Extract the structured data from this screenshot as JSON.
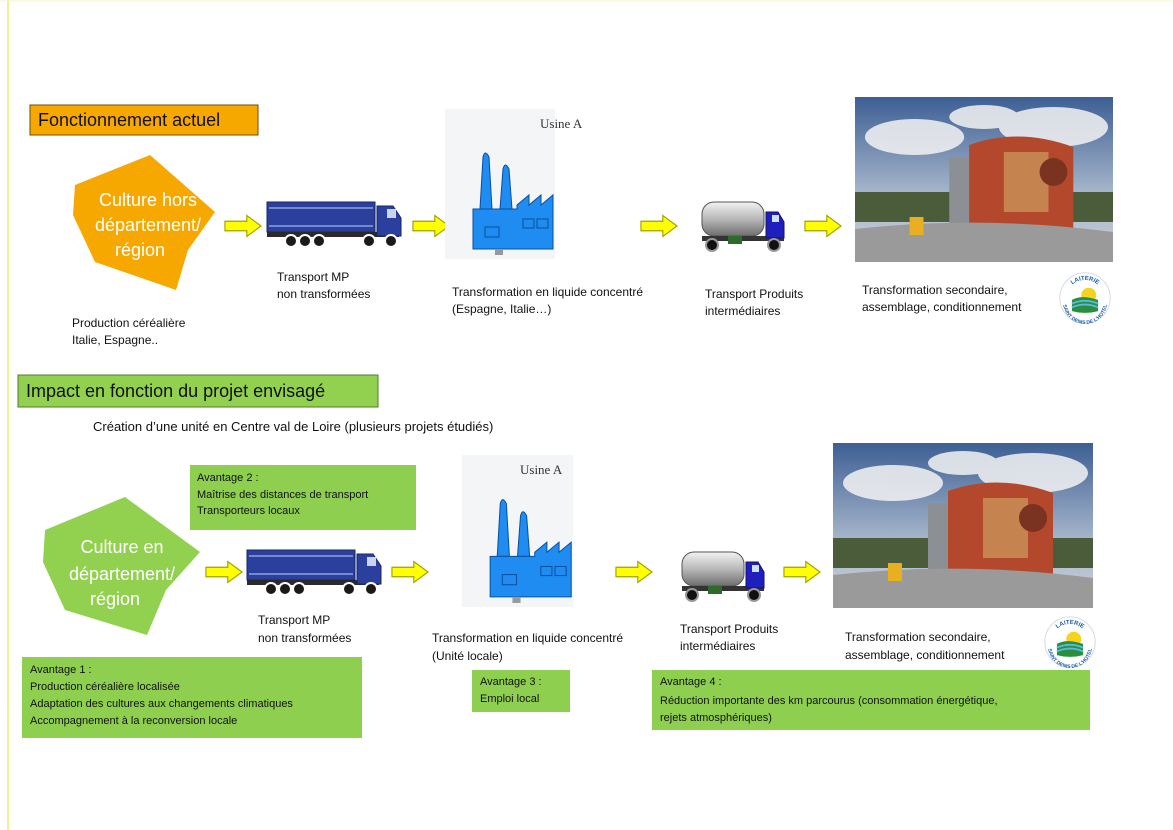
{
  "current": {
    "title": "Fonctionnement actuel",
    "source": {
      "label": [
        "Culture hors",
        "département/",
        "région"
      ],
      "caption": [
        "Production céréalière",
        "Italie, Espagne.."
      ]
    },
    "transport_raw": [
      "Transport MP",
      "non transformées"
    ],
    "factory": {
      "label": "Usine A",
      "caption": [
        "Transformation en liquide concentré",
        "(Espagne, Italie…)"
      ]
    },
    "transport_intermediate": [
      "Transport Produits",
      "intermédiaires"
    ],
    "plant": {
      "logo": [
        "LAITERIE",
        "SAINT DENIS DE L'HOTEL"
      ],
      "caption": [
        "Transformation secondaire,",
        "assemblage, conditionnement"
      ]
    }
  },
  "project": {
    "title": "Impact en fonction du projet envisagé",
    "subtitle": "Création d’une unité en Centre val de Loire (plusieurs projets étudiés)",
    "source": {
      "label": [
        "Culture en",
        "département/",
        "région"
      ]
    },
    "transport_raw": [
      "Transport MP",
      "non transformées"
    ],
    "factory": {
      "label": "Usine A",
      "caption": [
        "Transformation en liquide concentré",
        "(Unité locale)"
      ]
    },
    "transport_intermediate": [
      "Transport Produits",
      "intermédiaires"
    ],
    "plant": {
      "logo": [
        "LAITERIE",
        "SAINT DENIS DE L'HOTEL"
      ],
      "caption": [
        "Transformation secondaire,",
        "assemblage, conditionnement"
      ]
    },
    "advantages": [
      {
        "title": "Avantage 1 :",
        "lines": [
          "Production céréalière localisée",
          "Adaptation des cultures aux changements climatiques",
          "Accompagnement à la reconversion locale"
        ]
      },
      {
        "title": "Avantage 2 :",
        "lines": [
          "Maîtrise des distances de transport",
          "Transporteurs locaux"
        ]
      },
      {
        "title": "Avantage 3 :",
        "lines": [
          "Emploi local"
        ]
      },
      {
        "title": "Avantage 4 :",
        "lines": [
          "Réduction importante des km parcourus (consommation énergétique,",
          "rejets atmosphériques)"
        ]
      }
    ]
  }
}
